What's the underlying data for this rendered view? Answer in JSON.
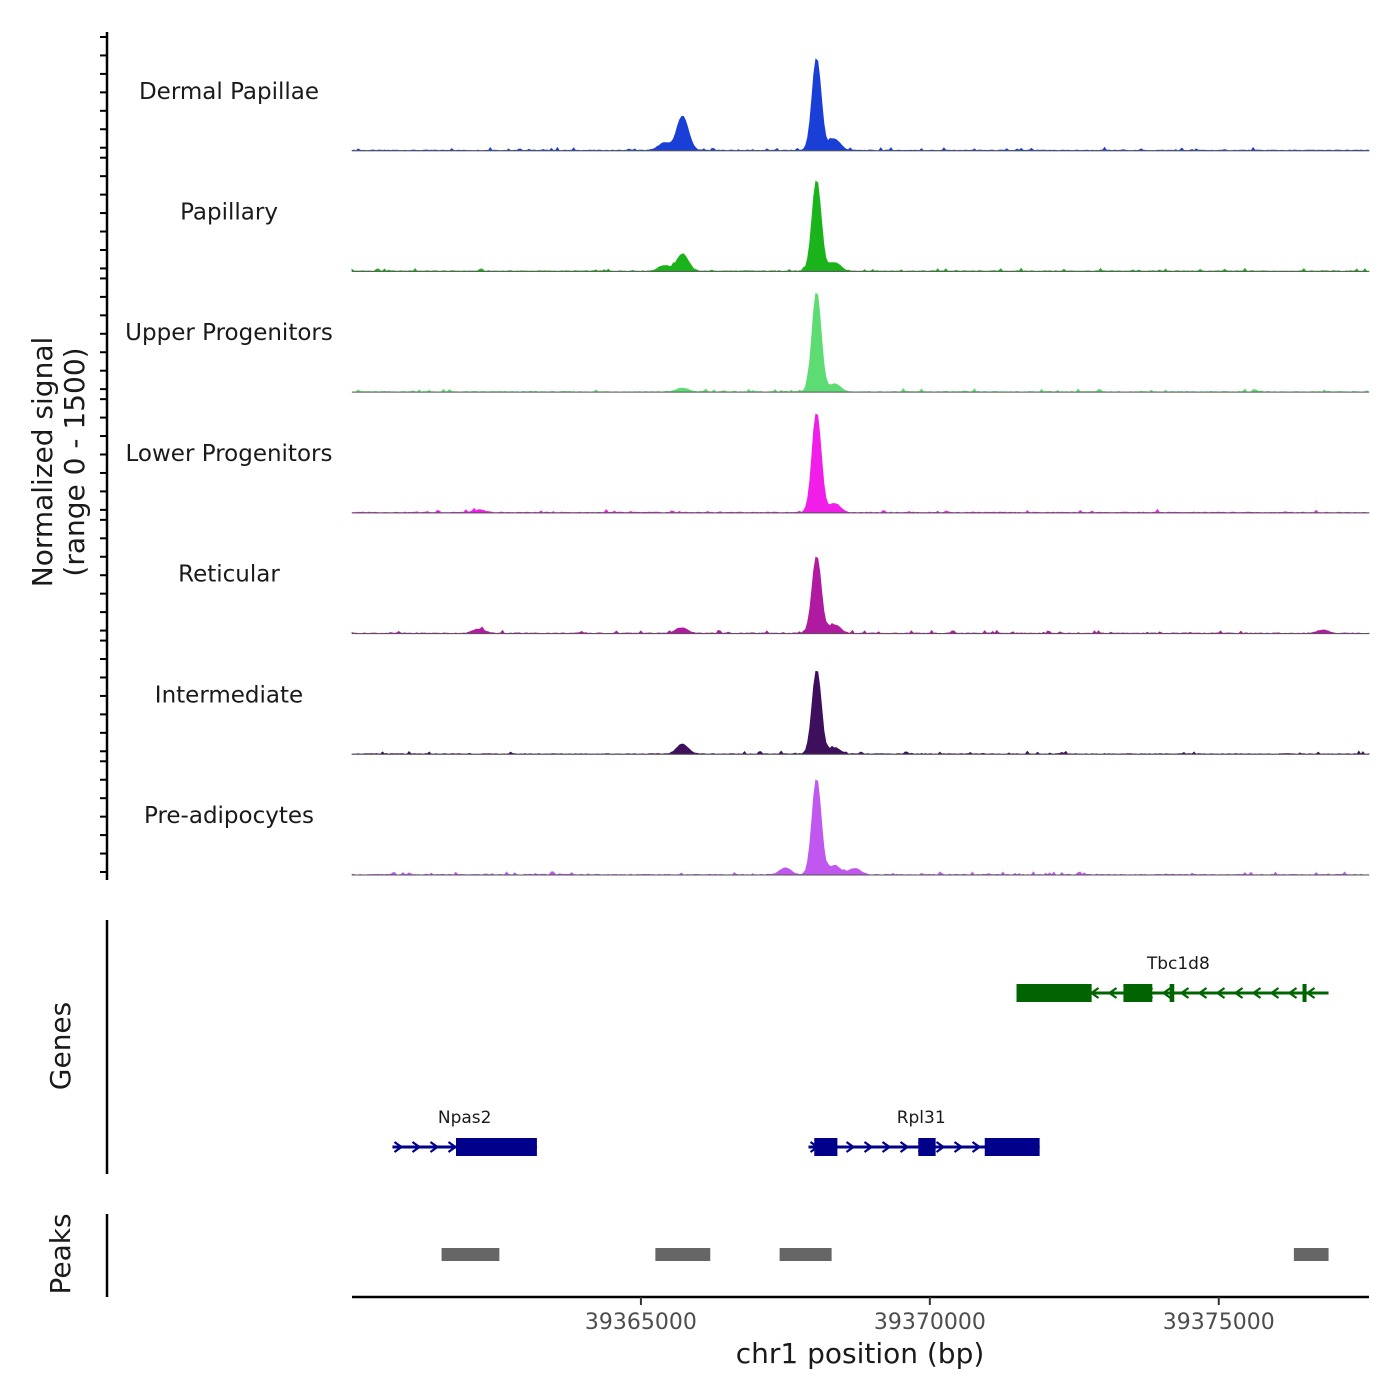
{
  "chart_data": {
    "type": "coverage-track",
    "chromosome": "chr1",
    "xlim": [
      39360000,
      39377600
    ],
    "ylim": [
      0,
      1500
    ],
    "ylabel": [
      "Normalized signal",
      "(range 0 - 1500)"
    ],
    "xlabel": "chr1 position (bp)",
    "x_ticks": [
      {
        "value": 39365000,
        "label": "39365000"
      },
      {
        "value": 39370000,
        "label": "39370000"
      },
      {
        "value": 39375000,
        "label": "39375000"
      }
    ],
    "tracks": [
      {
        "name": "Dermal Papillae",
        "color": "#1a3fd6",
        "peaks": [
          {
            "pos": 39368040,
            "height": 1500
          },
          {
            "pos": 39365720,
            "height": 560
          },
          {
            "pos": 39365400,
            "height": 120
          },
          {
            "pos": 39368350,
            "height": 180
          }
        ]
      },
      {
        "name": "Papillary",
        "color": "#1bb31b",
        "peaks": [
          {
            "pos": 39368040,
            "height": 1480
          },
          {
            "pos": 39365720,
            "height": 280
          },
          {
            "pos": 39365400,
            "height": 90
          },
          {
            "pos": 39368350,
            "height": 140
          }
        ]
      },
      {
        "name": "Upper Progenitors",
        "color": "#5cdc72",
        "peaks": [
          {
            "pos": 39368040,
            "height": 1620
          },
          {
            "pos": 39365720,
            "height": 60
          },
          {
            "pos": 39368350,
            "height": 130
          }
        ]
      },
      {
        "name": "Lower Progenitors",
        "color": "#f01ee8",
        "peaks": [
          {
            "pos": 39368040,
            "height": 1630
          },
          {
            "pos": 39362200,
            "height": 40
          },
          {
            "pos": 39368350,
            "height": 150
          }
        ]
      },
      {
        "name": "Reticular",
        "color": "#b01aa0",
        "peaks": [
          {
            "pos": 39368040,
            "height": 1250
          },
          {
            "pos": 39362200,
            "height": 70
          },
          {
            "pos": 39365700,
            "height": 90
          },
          {
            "pos": 39376800,
            "height": 50
          },
          {
            "pos": 39368350,
            "height": 140
          }
        ]
      },
      {
        "name": "Intermediate",
        "color": "#3d0f5c",
        "peaks": [
          {
            "pos": 39368040,
            "height": 1360
          },
          {
            "pos": 39365720,
            "height": 160
          },
          {
            "pos": 39368350,
            "height": 100
          }
        ]
      },
      {
        "name": "Pre-adipocytes",
        "color": "#c058f0",
        "peaks": [
          {
            "pos": 39368040,
            "height": 1560
          },
          {
            "pos": 39368350,
            "height": 150
          },
          {
            "pos": 39367500,
            "height": 110
          },
          {
            "pos": 39368700,
            "height": 100
          }
        ]
      }
    ],
    "genes_label": "Genes",
    "genes": [
      {
        "name": "Tbc1d8",
        "strand": "-",
        "color": "#006400",
        "start": 39371500,
        "end": 39376900,
        "exons": [
          [
            39371500,
            39372800
          ],
          [
            39373350,
            39373850
          ],
          [
            39374150,
            39374230
          ],
          [
            39376450,
            39376480
          ]
        ]
      },
      {
        "name": "Npas2",
        "strand": "+",
        "color": "#00008b",
        "start": 39360700,
        "end": 39363200,
        "exons": [
          [
            39361800,
            39363200
          ]
        ]
      },
      {
        "name": "Rpl31",
        "strand": "+",
        "color": "#00008b",
        "start": 39367900,
        "end": 39371900,
        "exons": [
          [
            39368000,
            39368400
          ],
          [
            39369800,
            39370100
          ],
          [
            39370950,
            39371900
          ]
        ]
      }
    ],
    "peaks_label": "Peaks",
    "peak_regions": [
      [
        39361550,
        39362550
      ],
      [
        39365250,
        39366200
      ],
      [
        39367400,
        39368300
      ],
      [
        39376300,
        39376900
      ]
    ]
  }
}
